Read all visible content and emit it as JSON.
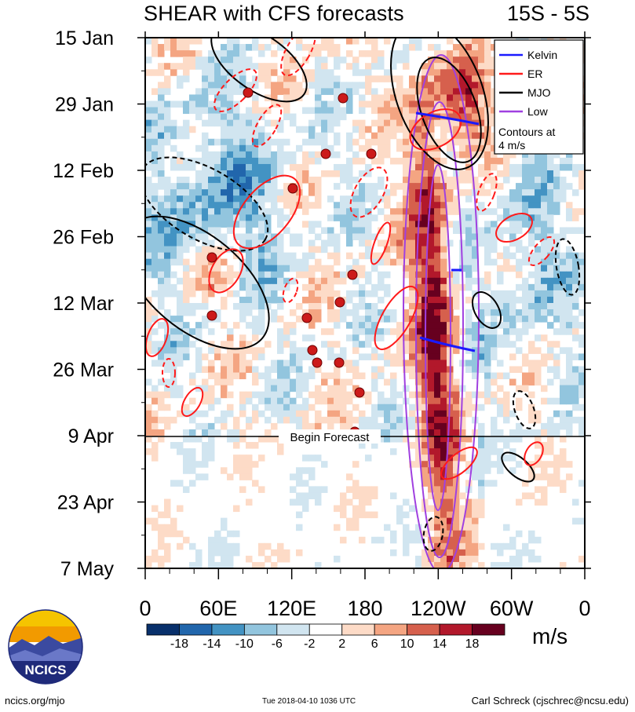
{
  "title_left": "SHEAR with CFS forecasts",
  "title_right": "15S - 5S",
  "units": "m/s",
  "begin_forecast_label": "Begin Forecast",
  "footer": {
    "site": "ncics.org/mjo",
    "timestamp": "Tue 2018-04-10 1036 UTC",
    "author": "Carl Schreck (cjschrec@ncsu.edu)"
  },
  "logo": {
    "text": "NCICS"
  },
  "legend": {
    "entries": [
      {
        "label": "Kelvin",
        "color": "#1a1aff"
      },
      {
        "label": "ER",
        "color": "#ff1a1a"
      },
      {
        "label": "MJO",
        "color": "#000000"
      },
      {
        "label": "Low",
        "color": "#a040e0"
      }
    ],
    "note_line1": "Contours at",
    "note_line2": "4 m/s"
  },
  "colorbar": {
    "labels": [
      "-18",
      "-14",
      "-10",
      "-6",
      "-2",
      "2",
      "6",
      "10",
      "14",
      "18"
    ],
    "colors": [
      "#08306b",
      "#2166ac",
      "#4393c3",
      "#92c5de",
      "#d1e5f0",
      "#ffffff",
      "#fddbc7",
      "#f4a582",
      "#d6604d",
      "#b2182b",
      "#67001f"
    ]
  },
  "chart_data": {
    "type": "heatmap",
    "title": "SHEAR with CFS forecasts",
    "subtitle": "15S - 5S",
    "xlabel": "",
    "ylabel": "",
    "x_ticks": [
      "0",
      "60E",
      "120E",
      "180",
      "120W",
      "60W",
      "0"
    ],
    "y_ticks": [
      "15 Jan",
      "29 Jan",
      "12 Feb",
      "26 Feb",
      "12 Mar",
      "26 Mar",
      "9 Apr",
      "23 Apr",
      "7 May"
    ],
    "xlim": [
      0,
      360
    ],
    "ylim": [
      "15 Jan",
      "7 May"
    ],
    "forecast_start": "9 Apr",
    "colorbar_units": "m/s",
    "colorbar_levels": [
      -18,
      -14,
      -10,
      -6,
      -2,
      2,
      6,
      10,
      14,
      18
    ],
    "contour_interval": 4,
    "legend_position": "top-right",
    "series": [
      {
        "name": "Kelvin"
      },
      {
        "name": "ER"
      },
      {
        "name": "MJO"
      },
      {
        "name": "Low"
      }
    ]
  }
}
